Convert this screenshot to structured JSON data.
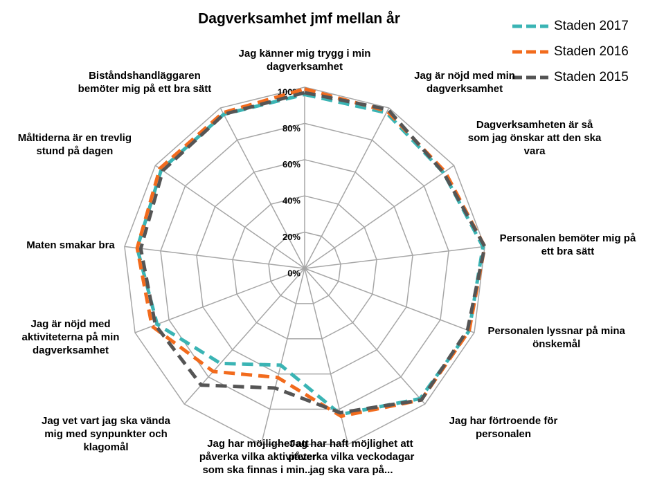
{
  "chart_data": {
    "type": "radar",
    "title": "Dagverksamhet jmf mellan år",
    "categories": [
      "Jag känner mig trygg i min dagverksamhet",
      "Jag är nöjd med min dagverksamhet",
      "Dagverksamheten är så som jag önskar att den ska vara",
      "Personalen bemöter mig på ett bra sätt",
      "Personalen lyssnar på mina önskemål",
      "Jag har förtroende för personalen",
      "Jag har haft möjlighet att påverka vilka veckodagar jag ska vara på...",
      "Jag har möjlighet att påverka vilka aktiviteter som ska finnas i min...",
      "Jag vet vart jag ska vända mig med synpunkter och klagomål",
      "Jag är nöjd med aktiviteterna på min dagverksamhet",
      "Maten smakar bra",
      "Måltiderna är en trevlig stund på dagen",
      "Biståndshandläggaren bemöter mig på ett bra sätt"
    ],
    "series": [
      {
        "name": "Staden 2017",
        "color": "#3ab4b4",
        "values": [
          96,
          97,
          93,
          99,
          97,
          96,
          83,
          55,
          70,
          87,
          93,
          96,
          96
        ]
      },
      {
        "name": "Staden 2016",
        "color": "#f26b1d",
        "values": [
          99,
          98,
          94,
          100,
          97,
          97,
          84,
          62,
          76,
          90,
          93,
          97,
          97
        ]
      },
      {
        "name": "Staden 2015",
        "color": "#555555",
        "values": [
          97,
          99,
          93,
          100,
          96,
          97,
          82,
          68,
          86,
          88,
          91,
          95,
          96
        ]
      }
    ],
    "ylim": [
      0,
      100
    ],
    "yticks": [
      {
        "value": 0,
        "label": "0%"
      },
      {
        "value": 20,
        "label": "20%"
      },
      {
        "value": 40,
        "label": "40%"
      },
      {
        "value": 60,
        "label": "60%"
      },
      {
        "value": 80,
        "label": "80%"
      },
      {
        "value": 100,
        "label": "100%"
      }
    ],
    "grid": true,
    "legend": "top-right"
  }
}
